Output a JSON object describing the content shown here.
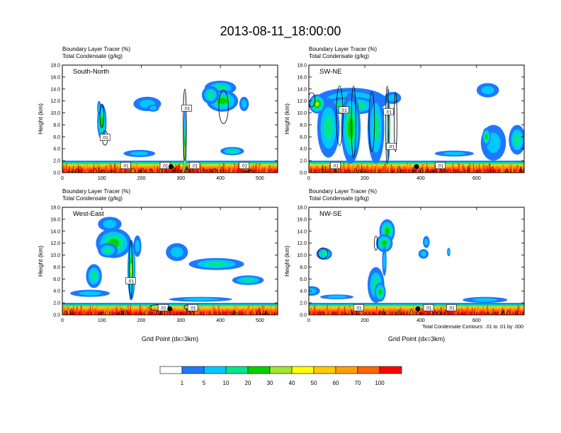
{
  "title": "2013-08-11_18:00:00",
  "chart_data": {
    "type": "contour",
    "colors": {
      "condensate_contour": "#000000",
      "palette": [
        "#ffffff",
        "#1e78ff",
        "#00c8ff",
        "#00e68c",
        "#00d200",
        "#a0e632",
        "#ffff00",
        "#ffc800",
        "#ffa000",
        "#ff6400",
        "#ff0000"
      ]
    },
    "colorbar": {
      "labels": [
        "1",
        "5",
        "10",
        "20",
        "30",
        "40",
        "50",
        "60",
        "70",
        "100"
      ]
    },
    "note": "Total Condensate Contours: .01 to .01 by .000",
    "panels": [
      {
        "name": "South-North",
        "line1": "Boundary Layer Tracer   (%)",
        "line2": "Total Condensate   (g/kg)",
        "xlabel": "",
        "ylabel": "Height (km)",
        "xmax": 545,
        "xticks": [
          0,
          100,
          200,
          300,
          400,
          500
        ],
        "xtick_labels": [
          "0",
          "100",
          "200",
          "300",
          "400",
          "500"
        ],
        "ylim": [
          0,
          18
        ],
        "yticks": [
          0,
          2,
          4,
          6,
          8,
          10,
          12,
          14,
          16,
          18
        ],
        "ytick_labels": [
          "0.0",
          "2.0",
          "4.0",
          "6.0",
          "8.0",
          "10.0",
          "12.0",
          "14.0",
          "16.0",
          "18.0"
        ],
        "blobs": [
          {
            "x": 310,
            "y": 2.5,
            "rx": 4,
            "ry": 8.5,
            "c": [
              1,
              2,
              3,
              4,
              5
            ]
          },
          {
            "x": 100,
            "y": 8.5,
            "rx": 12,
            "ry": 3,
            "c": [
              1,
              2,
              3,
              4
            ]
          },
          {
            "x": 93,
            "y": 10.8,
            "rx": 5,
            "ry": 1.2,
            "c": [
              1,
              2
            ]
          },
          {
            "x": 215,
            "y": 11.5,
            "rx": 35,
            "ry": 1.2,
            "c": [
              1,
              2
            ]
          },
          {
            "x": 230,
            "y": 10.8,
            "rx": 15,
            "ry": 0.6,
            "c": [
              1,
              2
            ]
          },
          {
            "x": 400,
            "y": 14.2,
            "rx": 40,
            "ry": 1.2,
            "c": [
              1,
              2,
              3
            ]
          },
          {
            "x": 405,
            "y": 12.0,
            "rx": 40,
            "ry": 1.8,
            "c": [
              1,
              2,
              3,
              4
            ]
          },
          {
            "x": 375,
            "y": 13.0,
            "rx": 22,
            "ry": 1.5,
            "c": [
              1,
              2,
              3
            ]
          },
          {
            "x": 460,
            "y": 11.5,
            "rx": 12,
            "ry": 1.2,
            "c": [
              1,
              2
            ]
          },
          {
            "x": 195,
            "y": 3.2,
            "rx": 40,
            "ry": 0.6,
            "c": [
              1,
              2
            ]
          },
          {
            "x": 430,
            "y": 3.6,
            "rx": 30,
            "ry": 0.7,
            "c": [
              1,
              2,
              3
            ]
          }
        ],
        "contours": [
          {
            "x": 310,
            "y": 8.0,
            "rx": 4,
            "ry": 6
          },
          {
            "x": 100,
            "y": 9.5,
            "rx": 5,
            "ry": 2
          },
          {
            "x": 408,
            "y": 11.0,
            "rx": 12,
            "ry": 2.8
          },
          {
            "x": 108,
            "y": 5.8,
            "rx": 7,
            "ry": 1.2
          }
        ],
        "labels": [
          {
            "x": 315,
            "y": 10.8,
            "t": ".01"
          },
          {
            "x": 108,
            "y": 5.9,
            "t": ".01"
          },
          {
            "x": 160,
            "y": 1.2,
            "t": ".01"
          },
          {
            "x": 260,
            "y": 1.2,
            "t": ".01"
          },
          {
            "x": 335,
            "y": 1.2,
            "t": ".01"
          },
          {
            "x": 460,
            "y": 1.2,
            "t": ".01"
          }
        ],
        "marker": {
          "x": 275,
          "y": 1.0
        }
      },
      {
        "name": "SW-NE",
        "line1": "Boundary Layer Tracer   (%)",
        "line2": "Total Condensate   (g/kg)",
        "xlabel": "",
        "ylabel": "Height (km)",
        "xmax": 770,
        "xticks": [
          0,
          200,
          400,
          600
        ],
        "xtick_labels": [
          "0",
          "200",
          "400",
          "600"
        ],
        "ylim": [
          0,
          18
        ],
        "yticks": [
          0,
          2,
          4,
          6,
          8,
          10,
          12,
          14,
          16,
          18
        ],
        "ytick_labels": [
          "0.0",
          "2.0",
          "4.0",
          "6.0",
          "8.0",
          "10.0",
          "12.0",
          "14.0",
          "16.0",
          "18.0"
        ],
        "blobs": [
          {
            "x": 150,
            "y": 12.0,
            "rx": 130,
            "ry": 2.2,
            "c": [
              1,
              2,
              3
            ]
          },
          {
            "x": 150,
            "y": 11.2,
            "rx": 100,
            "ry": 1.5,
            "c": [
              1,
              2,
              3,
              4
            ]
          },
          {
            "x": 70,
            "y": 7.5,
            "rx": 40,
            "ry": 5,
            "c": [
              1,
              2,
              3
            ]
          },
          {
            "x": 150,
            "y": 7.5,
            "rx": 35,
            "ry": 6,
            "c": [
              1,
              2,
              3,
              4
            ]
          },
          {
            "x": 240,
            "y": 7.5,
            "rx": 30,
            "ry": 6,
            "c": [
              1,
              2,
              3
            ]
          },
          {
            "x": 285,
            "y": 8.0,
            "rx": 6,
            "ry": 6,
            "c": [
              1,
              2,
              3,
              4,
              5
            ]
          },
          {
            "x": 30,
            "y": 11.5,
            "rx": 30,
            "ry": 1.6,
            "c": [
              1,
              2,
              3,
              4,
              5
            ]
          },
          {
            "x": 300,
            "y": 12.5,
            "rx": 30,
            "ry": 1.0,
            "c": [
              1,
              2
            ]
          },
          {
            "x": 640,
            "y": 13.8,
            "rx": 40,
            "ry": 1.2,
            "c": [
              1,
              2
            ]
          },
          {
            "x": 660,
            "y": 5.0,
            "rx": 45,
            "ry": 3,
            "c": [
              1,
              2
            ]
          },
          {
            "x": 635,
            "y": 6.0,
            "rx": 15,
            "ry": 1.5,
            "c": [
              1,
              2,
              3,
              4
            ]
          },
          {
            "x": 745,
            "y": 5.5,
            "rx": 30,
            "ry": 2.5,
            "c": [
              1,
              2,
              3
            ]
          },
          {
            "x": 520,
            "y": 3.2,
            "rx": 70,
            "ry": 0.5,
            "c": [
              1,
              2
            ]
          }
        ],
        "contours": [
          {
            "x": 10,
            "y": 12.2,
            "rx": 12,
            "ry": 1.2
          },
          {
            "x": 110,
            "y": 9.5,
            "rx": 12,
            "ry": 5
          },
          {
            "x": 160,
            "y": 8.5,
            "rx": 8,
            "ry": 6
          },
          {
            "x": 225,
            "y": 8.5,
            "rx": 10,
            "ry": 5
          },
          {
            "x": 280,
            "y": 8.0,
            "rx": 5,
            "ry": 6.5
          },
          {
            "x": 310,
            "y": 8.5,
            "rx": 5,
            "ry": 5
          }
        ],
        "labels": [
          {
            "x": 125,
            "y": 10.5,
            "t": ".01"
          },
          {
            "x": 285,
            "y": 10.2,
            "t": ".01"
          },
          {
            "x": 295,
            "y": 4.4,
            "t": ".01"
          },
          {
            "x": 95,
            "y": 1.2,
            "t": ".01"
          },
          {
            "x": 470,
            "y": 1.2,
            "t": ".01"
          }
        ],
        "marker": {
          "x": 385,
          "y": 1.0
        }
      },
      {
        "name": "West-East",
        "line1": "Boundary Layer Tracer   (%)",
        "line2": "Total Condensate   (g/kg)",
        "xlabel": "Grid Point (dx=3km)",
        "ylabel": "Height (km)",
        "xmax": 545,
        "xticks": [
          0,
          100,
          200,
          300,
          400,
          500
        ],
        "xtick_labels": [
          "0",
          "100",
          "200",
          "300",
          "400",
          "500"
        ],
        "ylim": [
          0,
          18
        ],
        "yticks": [
          0,
          2,
          4,
          6,
          8,
          10,
          12,
          14,
          16,
          18
        ],
        "ytick_labels": [
          "0.0",
          "2.0",
          "4.0",
          "6.0",
          "8.0",
          "10.0",
          "12.0",
          "14.0",
          "16.0",
          "18.0"
        ],
        "blobs": [
          {
            "x": 120,
            "y": 15.2,
            "rx": 30,
            "ry": 1.2,
            "c": [
              1,
              2
            ]
          },
          {
            "x": 130,
            "y": 12.0,
            "rx": 45,
            "ry": 2.5,
            "c": [
              1,
              2,
              3,
              4
            ]
          },
          {
            "x": 115,
            "y": 10.8,
            "rx": 25,
            "ry": 1.2,
            "c": [
              1,
              2,
              3
            ]
          },
          {
            "x": 175,
            "y": 7.5,
            "rx": 10,
            "ry": 5,
            "c": [
              1,
              2,
              3,
              4,
              6
            ]
          },
          {
            "x": 80,
            "y": 6.5,
            "rx": 20,
            "ry": 2,
            "c": [
              1,
              2,
              3
            ]
          },
          {
            "x": 190,
            "y": 11.5,
            "rx": 10,
            "ry": 1.8,
            "c": [
              1,
              2
            ]
          },
          {
            "x": 290,
            "y": 10.5,
            "rx": 28,
            "ry": 1.5,
            "c": [
              1,
              2
            ]
          },
          {
            "x": 390,
            "y": 8.5,
            "rx": 70,
            "ry": 1.0,
            "c": [
              1,
              2,
              3
            ]
          },
          {
            "x": 470,
            "y": 5.8,
            "rx": 40,
            "ry": 0.8,
            "c": [
              1,
              2,
              3
            ]
          },
          {
            "x": 70,
            "y": 3.6,
            "rx": 50,
            "ry": 0.6,
            "c": [
              1,
              2
            ]
          },
          {
            "x": 350,
            "y": 2.6,
            "rx": 80,
            "ry": 0.4,
            "c": [
              1,
              2
            ]
          }
        ],
        "contours": [
          {
            "x": 173,
            "y": 7.5,
            "rx": 4,
            "ry": 5
          },
          {
            "x": 240,
            "y": 1.2,
            "rx": 20,
            "ry": 0.5
          },
          {
            "x": 320,
            "y": 1.3,
            "rx": 12,
            "ry": 0.4
          }
        ],
        "labels": [
          {
            "x": 173,
            "y": 5.7,
            "t": ".01"
          },
          {
            "x": 255,
            "y": 1.2,
            "t": ".01"
          },
          {
            "x": 330,
            "y": 1.2,
            "t": ".01"
          }
        ],
        "marker": {
          "x": 272,
          "y": 1.0
        }
      },
      {
        "name": "NW-SE",
        "line1": "Boundary Layer Tracer   (%)",
        "line2": "Total Condensate   (g/kg)",
        "xlabel": "Grid Point (dx=3km)",
        "ylabel": "Height (km)",
        "xmax": 770,
        "xticks": [
          0,
          200,
          400,
          600
        ],
        "xtick_labels": [
          "0",
          "200",
          "400",
          "600"
        ],
        "ylim": [
          0,
          18
        ],
        "yticks": [
          0,
          2,
          4,
          6,
          8,
          10,
          12,
          14,
          16,
          18
        ],
        "ytick_labels": [
          "0.0",
          "2.0",
          "4.0",
          "6.0",
          "8.0",
          "10.0",
          "12.0",
          "14.0",
          "16.0",
          "18.0"
        ],
        "blobs": [
          {
            "x": 55,
            "y": 10.2,
            "rx": 28,
            "ry": 1.0,
            "c": [
              1,
              2,
              3
            ]
          },
          {
            "x": 280,
            "y": 14.0,
            "rx": 28,
            "ry": 2,
            "c": [
              1,
              2,
              3,
              4
            ]
          },
          {
            "x": 270,
            "y": 12.0,
            "rx": 30,
            "ry": 1.5,
            "c": [
              1,
              2,
              3,
              4
            ]
          },
          {
            "x": 270,
            "y": 9.0,
            "rx": 8,
            "ry": 2.5,
            "c": [
              1,
              2
            ]
          },
          {
            "x": 240,
            "y": 5.0,
            "rx": 30,
            "ry": 3,
            "c": [
              1,
              2,
              3
            ]
          },
          {
            "x": 255,
            "y": 3.8,
            "rx": 20,
            "ry": 1.6,
            "c": [
              1,
              2,
              3,
              4
            ]
          },
          {
            "x": 420,
            "y": 12.2,
            "rx": 12,
            "ry": 1.0,
            "c": [
              1,
              2
            ]
          },
          {
            "x": 410,
            "y": 10.2,
            "rx": 18,
            "ry": 0.8,
            "c": [
              1,
              2
            ]
          },
          {
            "x": 500,
            "y": 10.5,
            "rx": 6,
            "ry": 0.7,
            "c": [
              1,
              2
            ]
          },
          {
            "x": 10,
            "y": 4.0,
            "rx": 30,
            "ry": 0.8,
            "c": [
              1,
              2
            ]
          },
          {
            "x": 630,
            "y": 2.5,
            "rx": 80,
            "ry": 0.5,
            "c": [
              1,
              2
            ]
          },
          {
            "x": 100,
            "y": 3.0,
            "rx": 60,
            "ry": 0.4,
            "c": [
              1,
              2
            ]
          }
        ],
        "contours": [
          {
            "x": 50,
            "y": 10.3,
            "rx": 18,
            "ry": 0.9
          },
          {
            "x": 240,
            "y": 12.0,
            "rx": 6,
            "ry": 1.2
          }
        ],
        "labels": [
          {
            "x": 178,
            "y": 1.2,
            "t": ".01"
          },
          {
            "x": 428,
            "y": 1.2,
            "t": ".01"
          },
          {
            "x": 510,
            "y": 1.2,
            "t": ".01"
          }
        ],
        "marker": {
          "x": 390,
          "y": 1.0
        }
      }
    ]
  }
}
